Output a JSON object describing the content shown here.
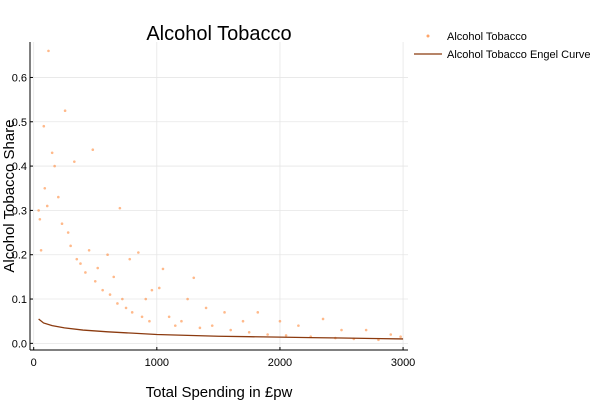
{
  "chart_data": {
    "type": "scatter",
    "title": "Alcohol Tobacco",
    "xlabel": "Total Spending in £pw",
    "ylabel": "Alcohol Tobacco Share",
    "xlim": [
      -30,
      3040
    ],
    "ylim": [
      -0.015,
      0.68
    ],
    "x_ticks": [
      0,
      1000,
      2000,
      3000
    ],
    "x_tick_labels": [
      "0",
      "1000",
      "2000",
      "3000"
    ],
    "y_ticks": [
      0.0,
      0.1,
      0.2,
      0.3,
      0.4,
      0.5,
      0.6
    ],
    "y_tick_labels": [
      "0.0",
      "0.1",
      "0.2",
      "0.3",
      "0.4",
      "0.5",
      "0.6"
    ],
    "grid": true,
    "legend_position": "outside-top-right",
    "series": [
      {
        "name": "Alcohol Tobacco",
        "kind": "scatter",
        "color": "#ff7f2a",
        "points": [
          [
            120,
            0.66
          ],
          [
            82,
            0.49
          ],
          [
            255,
            0.525
          ],
          [
            480,
            0.437
          ],
          [
            330,
            0.41
          ],
          [
            150,
            0.43
          ],
          [
            170,
            0.4
          ],
          [
            700,
            0.305
          ],
          [
            600,
            0.2
          ],
          [
            780,
            0.19
          ],
          [
            1050,
            0.168
          ],
          [
            1020,
            0.125
          ],
          [
            960,
            0.12
          ],
          [
            850,
            0.205
          ],
          [
            910,
            0.1
          ],
          [
            1300,
            0.148
          ],
          [
            1250,
            0.1
          ],
          [
            1400,
            0.08
          ],
          [
            1550,
            0.07
          ],
          [
            1700,
            0.05
          ],
          [
            1820,
            0.07
          ],
          [
            2000,
            0.05
          ],
          [
            2150,
            0.04
          ],
          [
            2350,
            0.055
          ],
          [
            2500,
            0.03
          ],
          [
            2700,
            0.03
          ],
          [
            2900,
            0.02
          ],
          [
            2980,
            0.015
          ],
          [
            50,
            0.28
          ],
          [
            40,
            0.3
          ],
          [
            60,
            0.21
          ],
          [
            90,
            0.35
          ],
          [
            110,
            0.31
          ],
          [
            200,
            0.33
          ],
          [
            230,
            0.27
          ],
          [
            280,
            0.25
          ],
          [
            300,
            0.22
          ],
          [
            350,
            0.19
          ],
          [
            380,
            0.18
          ],
          [
            420,
            0.16
          ],
          [
            450,
            0.21
          ],
          [
            500,
            0.14
          ],
          [
            520,
            0.17
          ],
          [
            560,
            0.12
          ],
          [
            620,
            0.11
          ],
          [
            650,
            0.15
          ],
          [
            680,
            0.09
          ],
          [
            720,
            0.1
          ],
          [
            750,
            0.08
          ],
          [
            800,
            0.07
          ],
          [
            880,
            0.06
          ],
          [
            940,
            0.05
          ],
          [
            1100,
            0.06
          ],
          [
            1150,
            0.04
          ],
          [
            1200,
            0.05
          ],
          [
            1350,
            0.035
          ],
          [
            1450,
            0.04
          ],
          [
            1600,
            0.03
          ],
          [
            1750,
            0.025
          ],
          [
            1900,
            0.02
          ],
          [
            2050,
            0.018
          ],
          [
            2250,
            0.015
          ],
          [
            2450,
            0.012
          ],
          [
            2600,
            0.01
          ],
          [
            2800,
            0.008
          ]
        ]
      },
      {
        "name": "Alcohol Tobacco Engel Curve",
        "kind": "line",
        "color": "#8b3a0f",
        "points": [
          [
            40,
            0.055
          ],
          [
            80,
            0.046
          ],
          [
            150,
            0.04
          ],
          [
            250,
            0.035
          ],
          [
            400,
            0.03
          ],
          [
            600,
            0.026
          ],
          [
            800,
            0.023
          ],
          [
            1000,
            0.02
          ],
          [
            1250,
            0.018
          ],
          [
            1500,
            0.016
          ],
          [
            1750,
            0.015
          ],
          [
            2000,
            0.014
          ],
          [
            2250,
            0.013
          ],
          [
            2500,
            0.012
          ],
          [
            2750,
            0.011
          ],
          [
            3000,
            0.01
          ]
        ]
      }
    ]
  }
}
